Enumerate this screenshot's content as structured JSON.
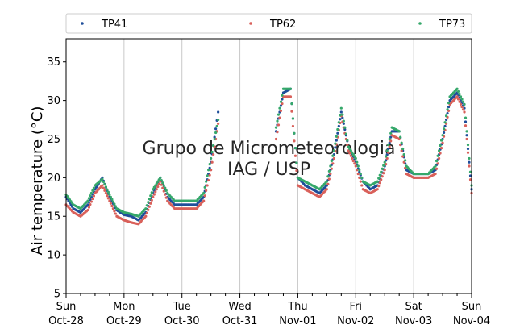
{
  "chart_data": {
    "type": "scatter",
    "ylabel": "Air temperature (°C)",
    "ylim": [
      5,
      38
    ],
    "yticks": [
      5,
      10,
      15,
      20,
      25,
      30,
      35
    ],
    "xlim": [
      "2018-10-28T00:00",
      "2018-11-04T00:00"
    ],
    "xticks": [
      {
        "date": "2018-10-28T00:00",
        "day": "Sun",
        "label": "Oct-28"
      },
      {
        "date": "2018-10-29T00:00",
        "day": "Mon",
        "label": "Oct-29"
      },
      {
        "date": "2018-10-30T00:00",
        "day": "Tue",
        "label": "Oct-30"
      },
      {
        "date": "2018-10-31T00:00",
        "day": "Wed",
        "label": "Oct-31"
      },
      {
        "date": "2018-11-01T00:00",
        "day": "Thu",
        "label": "Nov-01"
      },
      {
        "date": "2018-11-02T00:00",
        "day": "Fri",
        "label": "Nov-02"
      },
      {
        "date": "2018-11-03T00:00",
        "day": "Sat",
        "label": "Nov-03"
      },
      {
        "date": "2018-11-04T00:00",
        "day": "Sun",
        "label": "Nov-04"
      }
    ],
    "grid": "vertical",
    "legend": "top",
    "watermark": [
      "Grupo de Micrometeorologia",
      "IAG / USP"
    ],
    "series": [
      {
        "name": "TP41",
        "color": "#1f4e9a",
        "x": [
          "2018-10-28T00:00",
          "2018-10-28T03:00",
          "2018-10-28T06:00",
          "2018-10-28T09:00",
          "2018-10-28T12:00",
          "2018-10-28T15:00",
          "2018-10-28T18:00",
          "2018-10-28T21:00",
          "2018-10-29T00:00",
          "2018-10-29T03:00",
          "2018-10-29T06:00",
          "2018-10-29T09:00",
          "2018-10-29T12:00",
          "2018-10-29T15:00",
          "2018-10-29T18:00",
          "2018-10-29T21:00",
          "2018-10-30T00:00",
          "2018-10-30T03:00",
          "2018-10-30T06:00",
          "2018-10-30T09:00",
          "2018-10-30T12:00",
          "2018-10-30T15:00",
          "2018-10-30T18:00",
          "2018-10-31T15:00",
          "2018-10-31T18:00",
          "2018-10-31T21:00",
          "2018-11-01T00:00",
          "2018-11-01T03:00",
          "2018-11-01T06:00",
          "2018-11-01T09:00",
          "2018-11-01T12:00",
          "2018-11-01T15:00",
          "2018-11-01T18:00",
          "2018-11-01T21:00",
          "2018-11-02T00:00",
          "2018-11-02T03:00",
          "2018-11-02T06:00",
          "2018-11-02T09:00",
          "2018-11-02T12:00",
          "2018-11-02T15:00",
          "2018-11-02T18:00",
          "2018-11-02T21:00",
          "2018-11-03T00:00",
          "2018-11-03T03:00",
          "2018-11-03T06:00",
          "2018-11-03T09:00",
          "2018-11-03T12:00",
          "2018-11-03T15:00",
          "2018-11-03T18:00",
          "2018-11-03T21:00",
          "2018-11-04T00:00"
        ],
        "y": [
          17.5,
          16,
          15.5,
          16.5,
          18.5,
          20,
          17.5,
          15.8,
          15.2,
          15,
          14.5,
          15.5,
          18,
          20,
          17.5,
          16.5,
          16.5,
          16.5,
          16.5,
          17.5,
          22,
          28.5,
          null,
          26,
          31,
          31.5,
          20,
          19,
          18.5,
          18,
          19,
          23,
          28.5,
          24,
          22,
          19.5,
          18.5,
          19,
          21.5,
          26,
          26,
          21,
          20.5,
          20.5,
          20.5,
          21,
          25,
          30,
          31,
          29,
          18.5
        ]
      },
      {
        "name": "TP62",
        "color": "#d9605a",
        "x": [
          "2018-10-28T00:00",
          "2018-10-28T03:00",
          "2018-10-28T06:00",
          "2018-10-28T09:00",
          "2018-10-28T12:00",
          "2018-10-28T15:00",
          "2018-10-28T18:00",
          "2018-10-28T21:00",
          "2018-10-29T00:00",
          "2018-10-29T03:00",
          "2018-10-29T06:00",
          "2018-10-29T09:00",
          "2018-10-29T12:00",
          "2018-10-29T15:00",
          "2018-10-29T18:00",
          "2018-10-29T21:00",
          "2018-10-30T00:00",
          "2018-10-30T03:00",
          "2018-10-30T06:00",
          "2018-10-30T09:00",
          "2018-10-30T12:00",
          "2018-10-30T15:00",
          "2018-10-30T18:00",
          "2018-10-31T15:00",
          "2018-10-31T18:00",
          "2018-10-31T21:00",
          "2018-11-01T00:00",
          "2018-11-01T03:00",
          "2018-11-01T06:00",
          "2018-11-01T09:00",
          "2018-11-01T12:00",
          "2018-11-01T15:00",
          "2018-11-01T18:00",
          "2018-11-01T21:00",
          "2018-11-02T00:00",
          "2018-11-02T03:00",
          "2018-11-02T06:00",
          "2018-11-02T09:00",
          "2018-11-02T12:00",
          "2018-11-02T15:00",
          "2018-11-02T18:00",
          "2018-11-02T21:00",
          "2018-11-03T00:00",
          "2018-11-03T03:00",
          "2018-11-03T06:00",
          "2018-11-03T09:00",
          "2018-11-03T12:00",
          "2018-11-03T15:00",
          "2018-11-03T18:00",
          "2018-11-03T21:00",
          "2018-11-04T00:00"
        ],
        "y": [
          16.5,
          15.5,
          15,
          15.8,
          18,
          19,
          17,
          15,
          14.5,
          14.2,
          14,
          15,
          17.5,
          19.5,
          17,
          16,
          16,
          16,
          16,
          17,
          21,
          27,
          null,
          25,
          30.5,
          30.5,
          19,
          18.5,
          18,
          17.5,
          18.5,
          22.5,
          28,
          23.5,
          21.5,
          18.5,
          18,
          18.5,
          21,
          25.5,
          25,
          20.5,
          20,
          20,
          20,
          20.5,
          24.5,
          29.5,
          30.5,
          28.5,
          18
        ]
      },
      {
        "name": "TP73",
        "color": "#35a86a",
        "x": [
          "2018-10-28T00:00",
          "2018-10-28T03:00",
          "2018-10-28T06:00",
          "2018-10-28T09:00",
          "2018-10-28T12:00",
          "2018-10-28T15:00",
          "2018-10-28T18:00",
          "2018-10-28T21:00",
          "2018-10-29T00:00",
          "2018-10-29T03:00",
          "2018-10-29T06:00",
          "2018-10-29T09:00",
          "2018-10-29T12:00",
          "2018-10-29T15:00",
          "2018-10-29T18:00",
          "2018-10-29T21:00",
          "2018-10-30T00:00",
          "2018-10-30T03:00",
          "2018-10-30T06:00",
          "2018-10-30T09:00",
          "2018-10-30T12:00",
          "2018-10-30T15:00",
          "2018-10-30T18:00",
          "2018-10-31T15:00",
          "2018-10-31T18:00",
          "2018-10-31T21:00",
          "2018-11-01T00:00",
          "2018-11-01T03:00",
          "2018-11-01T06:00",
          "2018-11-01T09:00",
          "2018-11-01T12:00",
          "2018-11-01T15:00",
          "2018-11-01T18:00",
          "2018-11-01T21:00",
          "2018-11-02T00:00",
          "2018-11-02T03:00",
          "2018-11-02T06:00",
          "2018-11-02T09:00",
          "2018-11-02T12:00",
          "2018-11-02T15:00",
          "2018-11-02T18:00",
          "2018-11-02T21:00",
          "2018-11-03T00:00",
          "2018-11-03T03:00",
          "2018-11-03T06:00",
          "2018-11-03T09:00",
          "2018-11-03T12:00",
          "2018-11-03T15:00",
          "2018-11-03T18:00",
          "2018-11-03T21:00",
          "2018-11-04T00:00"
        ],
        "y": [
          17.8,
          16.5,
          16,
          17,
          19,
          19.8,
          17.8,
          16,
          15.5,
          15.3,
          15,
          16,
          18.5,
          20,
          18,
          17,
          17,
          17,
          17,
          18,
          22.5,
          27.5,
          null,
          26.5,
          31.5,
          31.5,
          20,
          19.5,
          19,
          18.5,
          19.5,
          23.5,
          29,
          24,
          22.5,
          19.5,
          19,
          19.5,
          22,
          26.5,
          26,
          21.5,
          20.5,
          20.5,
          20.5,
          21.5,
          25.5,
          30.5,
          31.5,
          29.5,
          19
        ]
      }
    ]
  }
}
